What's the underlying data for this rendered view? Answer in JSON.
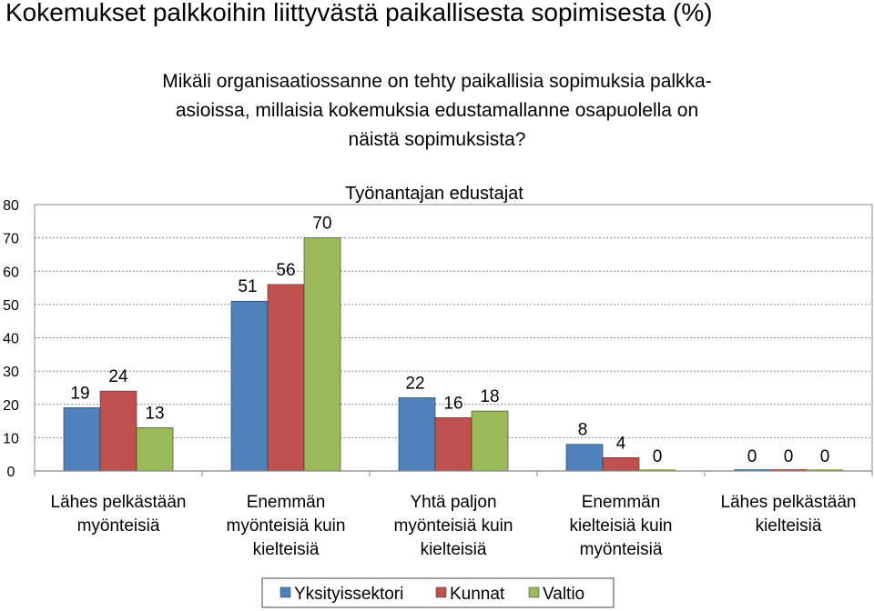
{
  "page": {
    "title": "Kokemukset palkkoihin liittyvästä paikallisesta sopimisesta (%)",
    "question_lines": [
      "Mikäli organisaatiossanne on tehty paikallisia sopimuksia palkka-",
      "asioissa, millaisia kokemuksia edustamallanne osapuolella on",
      "näistä sopimuksista?"
    ]
  },
  "colors": {
    "Yksityissektori": "#4f81bd",
    "Kunnat": "#c0504d",
    "Valtio": "#9bbb59"
  },
  "chart_data": {
    "type": "bar",
    "title": "Työnantajan edustajat",
    "categories": [
      [
        "Lähes pelkästään",
        "myönteisiä"
      ],
      [
        "Enemmän",
        "myönteisiä kuin",
        "kielteisiä"
      ],
      [
        "Yhtä paljon",
        "myönteisiä kuin",
        "kielteisiä"
      ],
      [
        "Enemmän",
        "kielteisiä kuin",
        "myönteisiä"
      ],
      [
        "Lähes pelkästään",
        "kielteisiä"
      ]
    ],
    "series": [
      {
        "name": "Yksityissektori",
        "values": [
          19,
          51,
          22,
          8,
          0
        ]
      },
      {
        "name": "Kunnat",
        "values": [
          24,
          56,
          16,
          4,
          0
        ]
      },
      {
        "name": "Valtio",
        "values": [
          13,
          70,
          18,
          0,
          0
        ]
      }
    ],
    "ylim": [
      0,
      80
    ],
    "yticks": [
      0,
      10,
      20,
      30,
      40,
      50,
      60,
      70,
      80
    ],
    "grid": true,
    "legend": "bottom"
  }
}
